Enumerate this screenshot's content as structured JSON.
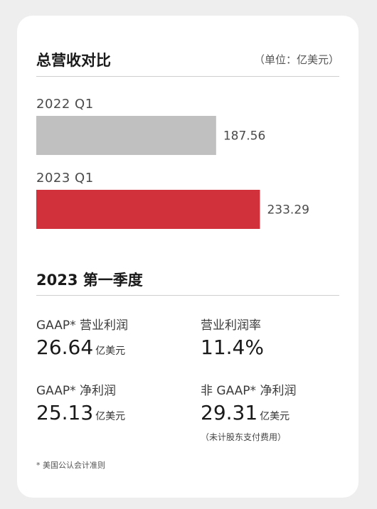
{
  "header": {
    "title": "总营收对比",
    "unit_note": "（单位：亿美元）"
  },
  "chart_data": {
    "type": "bar",
    "orientation": "horizontal",
    "categories": [
      "2022 Q1",
      "2023 Q1"
    ],
    "values": [
      187.56,
      233.29
    ],
    "value_labels": [
      "187.56",
      "233.29"
    ],
    "colors": [
      "#c0c0c0",
      "#d0313a"
    ],
    "title": "总营收对比",
    "unit": "亿美元",
    "grid": false
  },
  "quarter": {
    "title": "2023 第一季度",
    "metrics": [
      {
        "label": "GAAP* 营业利润",
        "value": "26.64",
        "unit": "亿美元",
        "note": ""
      },
      {
        "label": "营业利润率",
        "value": "11.4%",
        "unit": "",
        "note": ""
      },
      {
        "label": "GAAP* 净利润",
        "value": "25.13",
        "unit": "亿美元",
        "note": ""
      },
      {
        "label": "非 GAAP* 净利润",
        "value": "29.31",
        "unit": "亿美元",
        "note": "（未计股东支付费用）"
      }
    ]
  },
  "footnote": "* 美国公认会计准则"
}
